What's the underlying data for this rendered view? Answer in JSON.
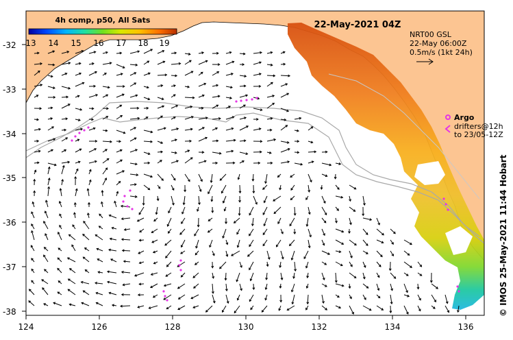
{
  "title": "22-May-2021 04Z",
  "colorbar": {
    "title": "4h comp, p50, All Sats",
    "ticks": [
      "13",
      "14",
      "15",
      "16",
      "17",
      "18",
      "19"
    ]
  },
  "current_legend": {
    "line1": "NRT00 GSL",
    "line2": "22-May 06:00Z",
    "line3": "0.5m/s (1kt 24h)"
  },
  "argo_legend": {
    "label": "Argo",
    "drifters_line1": "drifters@12h",
    "drifters_line2": "to 23/05-12Z"
  },
  "credit": "© IMOS 25-May-2021 11:44 Hobart",
  "axes": {
    "lon_range": [
      124,
      136.5
    ],
    "lat_range": [
      -38.15,
      -31.35
    ],
    "x_ticks": [
      "124",
      "126",
      "128",
      "130",
      "132",
      "134",
      "136"
    ],
    "y_ticks": [
      "-32",
      "-33",
      "-34",
      "-35",
      "-36",
      "-37",
      "-38"
    ]
  },
  "colors": {
    "land": "#fcc592",
    "argo": "#e535e5",
    "vector": "#000000",
    "isobath": "#a8a8a8"
  }
}
